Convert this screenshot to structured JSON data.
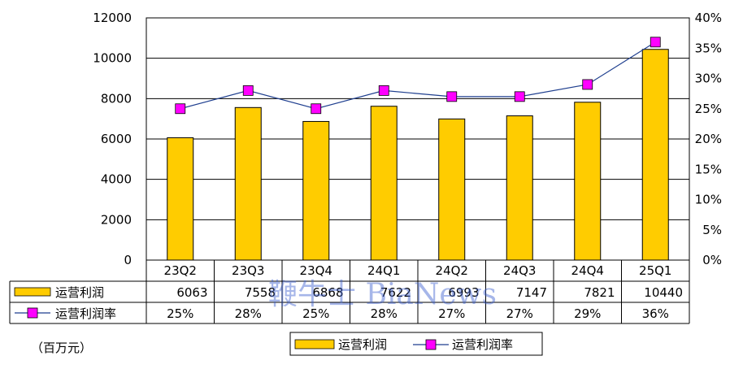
{
  "chart_data": {
    "type": "bar",
    "categories": [
      "23Q2",
      "23Q3",
      "23Q4",
      "24Q1",
      "24Q2",
      "24Q3",
      "24Q4",
      "25Q1"
    ],
    "series": [
      {
        "name": "运营利润",
        "type": "bar",
        "axis": "left",
        "color": "#ffcc00",
        "values": [
          6063,
          7558,
          6868,
          7622,
          6993,
          7147,
          7821,
          10440
        ]
      },
      {
        "name": "运营利润率",
        "type": "line",
        "axis": "right",
        "color": "#ff00ff",
        "line_color": "#1f3f8f",
        "values": [
          25,
          28,
          25,
          28,
          27,
          27,
          29,
          36
        ],
        "labels": [
          "25%",
          "28%",
          "25%",
          "28%",
          "27%",
          "27%",
          "29%",
          "36%"
        ]
      }
    ],
    "left_axis": {
      "ylim": [
        0,
        12000
      ],
      "ticks": [
        "0",
        "2000",
        "4000",
        "6000",
        "8000",
        "10000",
        "12000"
      ]
    },
    "right_axis": {
      "ylim": [
        0,
        40
      ],
      "ticks": [
        "0%",
        "5%",
        "10%",
        "15%",
        "20%",
        "25%",
        "30%",
        "35%",
        "40%"
      ]
    },
    "unit_label": "（百万元）",
    "watermark": "鞭牛士 BiaNews",
    "grid": true,
    "legend_position": "bottom",
    "data_table": true
  }
}
